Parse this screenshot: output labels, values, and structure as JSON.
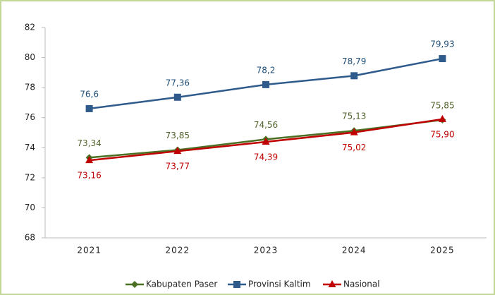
{
  "chart_data": {
    "type": "line",
    "categories": [
      "2021",
      "2022",
      "2023",
      "2024",
      "2025"
    ],
    "series": [
      {
        "name": "Kabupaten Paser",
        "color": "#4a7023",
        "label_color": "#4f6228",
        "marker": "diamond",
        "label_position": "above",
        "values": [
          73.34,
          73.85,
          74.56,
          75.13,
          75.85
        ],
        "value_labels": [
          "73,34",
          "73,85",
          "74,56",
          "75,13",
          "75,85"
        ]
      },
      {
        "name": "Provinsi Kaltim",
        "color": "#2e5b8c",
        "label_color": "#1f4e79",
        "marker": "square",
        "label_position": "above",
        "values": [
          76.6,
          77.36,
          78.2,
          78.79,
          79.93
        ],
        "value_labels": [
          "76,6",
          "77,36",
          "78,2",
          "78,79",
          "79,93"
        ]
      },
      {
        "name": "Nasional",
        "color": "#c00000",
        "label_color": "#c00000",
        "marker": "triangle",
        "label_position": "below",
        "values": [
          73.16,
          73.77,
          74.39,
          75.02,
          75.9
        ],
        "value_labels": [
          "73,16",
          "73,77",
          "74,39",
          "75,02",
          "75,90"
        ]
      }
    ],
    "ylim": [
      68,
      82
    ],
    "yticks": [
      68,
      70,
      72,
      74,
      76,
      78,
      80,
      82
    ],
    "legend": "bottom"
  }
}
